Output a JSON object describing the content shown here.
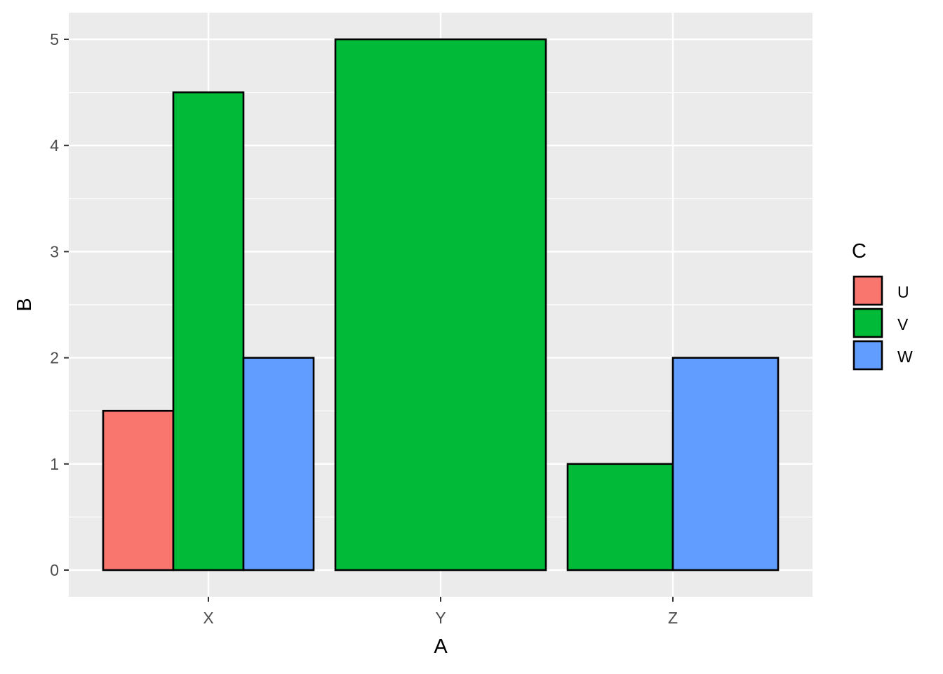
{
  "chart_data": {
    "type": "bar",
    "subtype": "grouped (dodge, variable widths)",
    "categories": [
      "X",
      "Y",
      "Z"
    ],
    "series": [
      {
        "name": "U",
        "color": "#F8766D",
        "values": [
          1.5,
          null,
          null
        ]
      },
      {
        "name": "V",
        "color": "#00BA38",
        "values": [
          4.5,
          5,
          1
        ]
      },
      {
        "name": "W",
        "color": "#619CFF",
        "values": [
          2,
          null,
          2
        ]
      }
    ],
    "xlabel": "A",
    "ylabel": "B",
    "ylim": [
      0,
      5
    ],
    "yticks": [
      0,
      1,
      2,
      3,
      4,
      5
    ],
    "legend": {
      "title": "C",
      "entries": [
        "U",
        "V",
        "W"
      ],
      "position": "right"
    },
    "grid": true,
    "panel_background": "#EBEBEB",
    "gridline_color": "#FFFFFF",
    "bar_outline": "#000000"
  }
}
